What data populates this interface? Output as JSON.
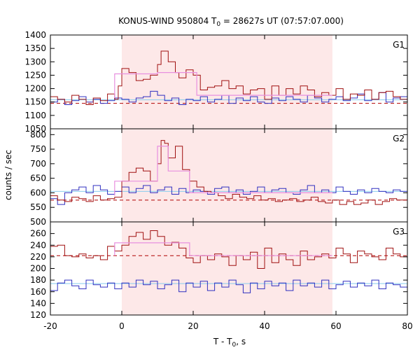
{
  "chart_data": {
    "type": "line",
    "title_main": "KONUS-WIND 950804 T",
    "title_sub": "0",
    "title_rest": " = 28627s UT (07:57:07.000)",
    "xlabel_main": "T - T",
    "xlabel_sub": "0",
    "xlabel_rest": ", s",
    "ylabel": "counts / sec",
    "xlim": [
      -20,
      80
    ],
    "xticks": [
      "-20",
      "0",
      "20",
      "40",
      "60",
      "80"
    ],
    "highlight_interval": [
      0,
      59
    ],
    "colors": {
      "highlight": "#fde8e8",
      "red_series": "#a01010",
      "blue_series": "#3030c0",
      "fit_line": "#88ccee",
      "red_bg_line": "#b00000",
      "pink_step": "#e890e0"
    },
    "panels": [
      {
        "label": "G1",
        "ylim": [
          1050,
          1400
        ],
        "yticks": [
          1050,
          1100,
          1150,
          1200,
          1250,
          1300,
          1350,
          1400
        ],
        "blue_background": 1158,
        "red_background": 1145,
        "red_x": [
          -20,
          -18,
          -16,
          -14,
          -12,
          -10,
          -8,
          -6,
          -4,
          -2,
          -1,
          0,
          2,
          4,
          6,
          8,
          10,
          11,
          13,
          15,
          16,
          18,
          20,
          22,
          24,
          26,
          28,
          30,
          32,
          34,
          36,
          38,
          40,
          42,
          44,
          46,
          48,
          50,
          52,
          54,
          56,
          58,
          60,
          62,
          64,
          66,
          68,
          70,
          72,
          74,
          76,
          78
        ],
        "red_y": [
          1170,
          1160,
          1150,
          1175,
          1160,
          1140,
          1165,
          1155,
          1180,
          1160,
          1210,
          1275,
          1260,
          1230,
          1235,
          1250,
          1290,
          1340,
          1300,
          1260,
          1240,
          1270,
          1250,
          1195,
          1205,
          1210,
          1230,
          1200,
          1210,
          1180,
          1195,
          1200,
          1160,
          1210,
          1175,
          1200,
          1180,
          1210,
          1195,
          1170,
          1185,
          1175,
          1200,
          1160,
          1180,
          1175,
          1195,
          1160,
          1185,
          1190,
          1170,
          1160
        ],
        "blue_x": [
          -20,
          -18,
          -16,
          -14,
          -12,
          -10,
          -8,
          -6,
          -4,
          -2,
          0,
          2,
          4,
          6,
          8,
          10,
          12,
          14,
          16,
          18,
          20,
          22,
          24,
          26,
          28,
          30,
          32,
          34,
          36,
          38,
          40,
          42,
          44,
          46,
          48,
          50,
          52,
          54,
          56,
          58,
          60,
          62,
          64,
          66,
          68,
          70,
          72,
          74,
          76,
          78
        ],
        "blue_y": [
          1150,
          1160,
          1140,
          1155,
          1170,
          1150,
          1160,
          1145,
          1155,
          1165,
          1160,
          1150,
          1165,
          1170,
          1190,
          1175,
          1155,
          1165,
          1140,
          1160,
          1155,
          1170,
          1150,
          1160,
          1175,
          1145,
          1165,
          1155,
          1170,
          1150,
          1145,
          1165,
          1155,
          1170,
          1160,
          1150,
          1175,
          1165,
          1150,
          1160,
          1170,
          1155,
          1165,
          1180,
          1155,
          1160,
          1185,
          1150,
          1165,
          1170
        ],
        "pink_steps": [
          [
            -2,
            1165
          ],
          [
            -2,
            1255
          ],
          [
            10,
            1255
          ],
          [
            10,
            1260
          ],
          [
            21,
            1260
          ],
          [
            21,
            1175
          ],
          [
            59,
            1175
          ]
        ]
      },
      {
        "label": "G2",
        "ylim": [
          500,
          820
        ],
        "yticks": [
          500,
          550,
          600,
          650,
          700,
          750,
          800
        ],
        "blue_background": 605,
        "red_background": 575,
        "red_x": [
          -20,
          -18,
          -16,
          -14,
          -12,
          -10,
          -8,
          -6,
          -4,
          -2,
          0,
          2,
          4,
          6,
          8,
          10,
          11,
          12,
          13,
          15,
          17,
          19,
          21,
          23,
          25,
          27,
          29,
          31,
          33,
          35,
          37,
          39,
          41,
          43,
          45,
          47,
          49,
          51,
          53,
          55,
          57,
          59,
          61,
          63,
          65,
          67,
          69,
          71,
          73,
          75,
          77
        ],
        "red_y": [
          590,
          575,
          570,
          585,
          580,
          570,
          590,
          575,
          580,
          585,
          640,
          670,
          685,
          675,
          640,
          700,
          780,
          770,
          720,
          760,
          680,
          640,
          620,
          605,
          600,
          590,
          580,
          595,
          585,
          580,
          590,
          575,
          580,
          570,
          575,
          580,
          570,
          575,
          585,
          570,
          565,
          575,
          560,
          570,
          560,
          565,
          575,
          560,
          570,
          580,
          575
        ],
        "blue_x": [
          -20,
          -18,
          -16,
          -14,
          -12,
          -10,
          -8,
          -6,
          -4,
          -2,
          0,
          2,
          4,
          6,
          8,
          10,
          12,
          14,
          16,
          18,
          20,
          22,
          24,
          26,
          28,
          30,
          32,
          34,
          36,
          38,
          40,
          42,
          44,
          46,
          48,
          50,
          52,
          54,
          56,
          58,
          60,
          62,
          64,
          66,
          68,
          70,
          72,
          74,
          76,
          78
        ],
        "blue_y": [
          580,
          560,
          600,
          610,
          620,
          600,
          625,
          610,
          595,
          605,
          620,
          600,
          615,
          625,
          600,
          610,
          620,
          595,
          615,
          600,
          610,
          605,
          595,
          615,
          620,
          600,
          610,
          595,
          605,
          620,
          600,
          610,
          615,
          600,
          595,
          610,
          625,
          600,
          610,
          600,
          620,
          605,
          595,
          610,
          600,
          615,
          605,
          600,
          610,
          605
        ],
        "pink_steps": [
          [
            -2,
            590
          ],
          [
            -2,
            640
          ],
          [
            10,
            640
          ],
          [
            10,
            760
          ],
          [
            13,
            760
          ],
          [
            13,
            675
          ],
          [
            19,
            675
          ],
          [
            19,
            600
          ],
          [
            59,
            600
          ]
        ]
      },
      {
        "label": "G3",
        "ylim": [
          120,
          280
        ],
        "yticks": [
          120,
          140,
          160,
          180,
          200,
          220,
          240,
          260
        ],
        "blue_background": 174,
        "red_background": 222,
        "red_x": [
          -20,
          -18,
          -16,
          -14,
          -12,
          -10,
          -8,
          -6,
          -4,
          -2,
          0,
          2,
          4,
          6,
          8,
          10,
          12,
          14,
          16,
          18,
          20,
          22,
          24,
          26,
          28,
          30,
          32,
          34,
          36,
          38,
          40,
          42,
          44,
          46,
          48,
          50,
          52,
          54,
          56,
          58,
          60,
          62,
          64,
          66,
          68,
          70,
          72,
          74,
          76,
          78
        ],
        "red_y": [
          238,
          240,
          222,
          220,
          225,
          218,
          222,
          215,
          238,
          230,
          240,
          255,
          262,
          250,
          265,
          255,
          240,
          245,
          235,
          218,
          210,
          222,
          215,
          225,
          220,
          205,
          222,
          215,
          228,
          200,
          235,
          210,
          225,
          215,
          205,
          230,
          215,
          220,
          225,
          218,
          235,
          225,
          210,
          230,
          225,
          220,
          215,
          235,
          225,
          220
        ],
        "blue_x": [
          -20,
          -18,
          -16,
          -14,
          -12,
          -10,
          -8,
          -6,
          -4,
          -2,
          0,
          2,
          4,
          6,
          8,
          10,
          12,
          14,
          16,
          18,
          20,
          22,
          24,
          26,
          28,
          30,
          32,
          34,
          36,
          38,
          40,
          42,
          44,
          46,
          48,
          50,
          52,
          54,
          56,
          58,
          60,
          62,
          64,
          66,
          68,
          70,
          72,
          74,
          76,
          78
        ],
        "blue_y": [
          162,
          175,
          180,
          170,
          165,
          180,
          172,
          168,
          175,
          165,
          175,
          168,
          180,
          172,
          178,
          165,
          172,
          180,
          160,
          175,
          168,
          178,
          162,
          175,
          168,
          180,
          172,
          158,
          175,
          165,
          178,
          170,
          175,
          162,
          180,
          170,
          175,
          168,
          180,
          165,
          172,
          178,
          168,
          175,
          170,
          180,
          165,
          175,
          172,
          168
        ],
        "pink_steps": [
          [
            -2,
            222
          ],
          [
            -2,
            244
          ],
          [
            10,
            244
          ],
          [
            10,
            244
          ],
          [
            19,
            244
          ],
          [
            19,
            222
          ],
          [
            59,
            222
          ]
        ]
      }
    ]
  }
}
